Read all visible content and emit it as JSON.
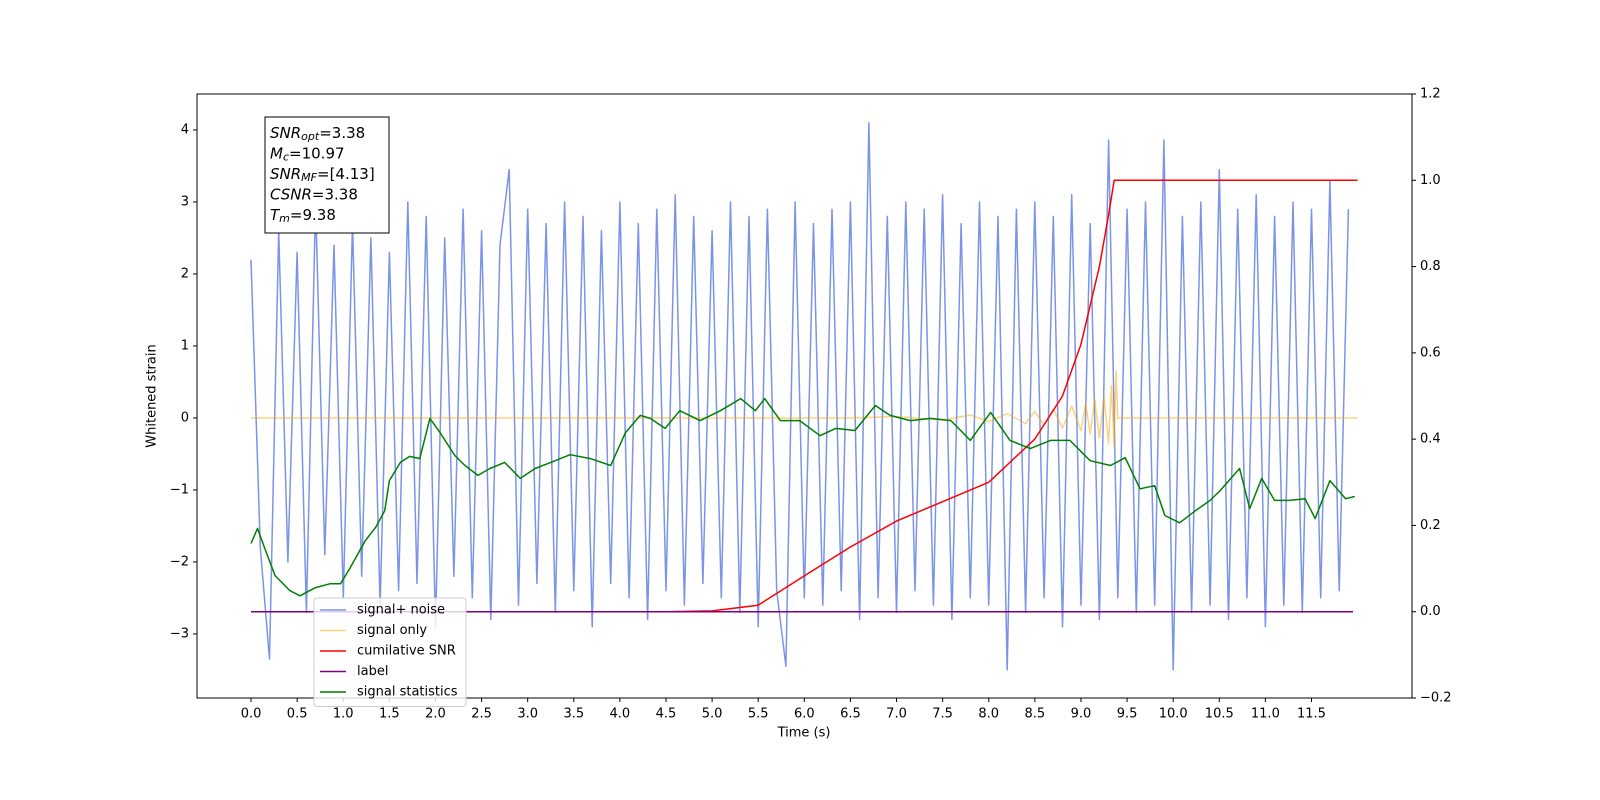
{
  "chart_data": {
    "type": "line",
    "xlabel": "Time (s)",
    "ylabel": "Whitened strain",
    "xlim": [
      -0.586,
      12.59
    ],
    "ylim": [
      -3.89,
      4.5
    ],
    "y2lim": [
      -0.2,
      1.2
    ],
    "xticks": [
      {
        "value": 0,
        "label": "0.0"
      },
      0.5,
      {
        "value": 1,
        "label": "1.0"
      },
      1.5,
      {
        "value": 2,
        "label": "2.0"
      },
      2.5,
      {
        "value": 3,
        "label": "3.0"
      },
      3.5,
      {
        "value": 4,
        "label": "4.0"
      },
      4.5,
      {
        "value": 5,
        "label": "5.0"
      },
      5.5,
      {
        "value": 6,
        "label": "6.0"
      },
      6.5,
      {
        "value": 7,
        "label": "7.0"
      },
      7.5,
      {
        "value": 8,
        "label": "8.0"
      },
      8.5,
      {
        "value": 9,
        "label": "9.0"
      },
      9.5,
      {
        "value": 10,
        "label": "10.0"
      },
      10.5,
      {
        "value": 11,
        "label": "11.0"
      },
      11.5
    ],
    "yticks": [
      {
        "value": -3,
        "label": "−3"
      },
      {
        "value": -2,
        "label": "−2"
      },
      {
        "value": -1,
        "label": "−1"
      },
      0,
      1,
      2,
      3,
      4
    ],
    "y2ticks": [
      {
        "value": -0.2,
        "label": "−0.2"
      },
      {
        "value": 0,
        "label": "0.0"
      },
      0.2,
      0.4,
      0.6,
      0.8,
      {
        "value": 1,
        "label": "1.0"
      },
      1.2
    ],
    "legend": "lower left",
    "series": [
      {
        "name": "signal+ noise",
        "color": "#6d88e6",
        "opacity": 0.9,
        "x": [
          0,
          0.1,
          0.2,
          0.3,
          0.4,
          0.5,
          0.6,
          0.7,
          0.8,
          0.9,
          1,
          1.1,
          1.2,
          1.3,
          1.4,
          1.5,
          1.6,
          1.7,
          1.8,
          1.9,
          2,
          2.1,
          2.2,
          2.3,
          2.4,
          2.5,
          2.6,
          2.7,
          2.8,
          2.9,
          3,
          3.1,
          3.2,
          3.3,
          3.4,
          3.5,
          3.6,
          3.7,
          3.8,
          3.9,
          4,
          4.1,
          4.2,
          4.3,
          4.4,
          4.5,
          4.6,
          4.7,
          4.8,
          4.9,
          5,
          5.1,
          5.2,
          5.3,
          5.4,
          5.5,
          5.6,
          5.7,
          5.8,
          5.9,
          6,
          6.1,
          6.2,
          6.3,
          6.4,
          6.5,
          6.6,
          6.7,
          6.8,
          6.9,
          7,
          7.1,
          7.2,
          7.3,
          7.4,
          7.5,
          7.6,
          7.7,
          7.8,
          7.9,
          8,
          8.1,
          8.2,
          8.3,
          8.4,
          8.5,
          8.6,
          8.7,
          8.8,
          8.9,
          9,
          9.1,
          9.2,
          9.3,
          9.4,
          9.5,
          9.6,
          9.7,
          9.8,
          9.9,
          10,
          10.1,
          10.2,
          10.3,
          10.4,
          10.5,
          10.6,
          10.7,
          10.8,
          10.9,
          11,
          11.1,
          11.2,
          11.3,
          11.4,
          11.5,
          11.6,
          11.7,
          11.8,
          11.9
        ],
        "values": [
          2.2,
          -1.8,
          -3.35,
          2.6,
          -2.0,
          2.3,
          -2.7,
          3.0,
          -1.9,
          2.4,
          -2.5,
          2.7,
          -2.2,
          2.5,
          -2.6,
          2.3,
          -2.4,
          3.0,
          -2.3,
          2.8,
          -2.9,
          2.5,
          -2.2,
          2.9,
          -2.5,
          2.6,
          -2.8,
          2.4,
          3.45,
          -2.6,
          2.9,
          -2.3,
          2.7,
          -2.7,
          3.0,
          -2.4,
          2.8,
          -2.9,
          2.6,
          -2.3,
          3.0,
          -2.5,
          2.7,
          -2.8,
          2.9,
          -2.4,
          3.1,
          -2.6,
          2.8,
          -2.3,
          2.6,
          -2.5,
          3.0,
          -2.7,
          2.8,
          -2.9,
          2.9,
          -2.4,
          -3.45,
          3.0,
          -2.5,
          2.7,
          -2.6,
          2.9,
          -2.4,
          3.0,
          -2.8,
          4.1,
          -2.5,
          2.8,
          -2.7,
          3.0,
          -2.4,
          2.9,
          -2.6,
          3.1,
          -2.8,
          2.7,
          -2.5,
          3.0,
          -2.6,
          2.8,
          -3.5,
          2.9,
          -2.7,
          3.0,
          -2.5,
          2.8,
          -2.9,
          3.1,
          -2.6,
          2.7,
          -2.8,
          3.86,
          -2.5,
          2.9,
          -2.7,
          3.0,
          -2.6,
          3.86,
          -3.5,
          2.8,
          -2.7,
          3.0,
          -2.6,
          3.45,
          -2.8,
          2.9,
          -2.5,
          3.1,
          -2.9,
          2.8,
          -2.6,
          3.0,
          -2.7,
          2.9,
          -2.5,
          3.3,
          -2.4,
          2.9
        ]
      },
      {
        "name": "signal only",
        "color": "#ffa500",
        "opacity": 0.5,
        "x": [
          0,
          6.5,
          7.0,
          7.5,
          7.8,
          8.0,
          8.2,
          8.4,
          8.5,
          8.6,
          8.7,
          8.8,
          8.9,
          9.0,
          9.05,
          9.1,
          9.15,
          9.2,
          9.25,
          9.3,
          9.33,
          9.36,
          9.38,
          9.4,
          12
        ],
        "values": [
          0,
          0,
          0.02,
          -0.03,
          0.04,
          -0.05,
          0.06,
          -0.08,
          0.09,
          -0.1,
          0.12,
          -0.14,
          0.16,
          -0.18,
          0.2,
          -0.22,
          0.25,
          -0.28,
          0.3,
          -0.35,
          0.45,
          -0.4,
          0.65,
          0,
          0
        ]
      },
      {
        "name": "cumilative SNR",
        "color": "#ff0000",
        "axis": "y2",
        "x": [
          0,
          4.5,
          5.0,
          5.5,
          6.0,
          6.5,
          7.0,
          7.5,
          8.0,
          8.5,
          8.8,
          9.0,
          9.2,
          9.3,
          9.36,
          12
        ],
        "values": [
          0,
          0,
          0.002,
          0.015,
          0.083,
          0.15,
          0.21,
          0.255,
          0.3,
          0.4,
          0.5,
          0.62,
          0.8,
          0.92,
          1,
          1
        ]
      },
      {
        "name": "label",
        "color": "#800080",
        "axis": "y2",
        "x": [
          0,
          11.95
        ],
        "values": [
          0,
          0
        ]
      },
      {
        "name": "signal statistics",
        "color": "#008000",
        "axis": "y2",
        "x": [
          0,
          0.07,
          0.15,
          0.26,
          0.42,
          0.53,
          0.7,
          0.86,
          0.97,
          1.07,
          1.24,
          1.35,
          1.45,
          1.5,
          1.62,
          1.72,
          1.83,
          1.94,
          2.05,
          2.21,
          2.32,
          2.46,
          2.59,
          2.75,
          2.92,
          3.08,
          3.25,
          3.46,
          3.68,
          3.9,
          4.06,
          4.22,
          4.33,
          4.49,
          4.65,
          4.87,
          5.09,
          5.31,
          5.47,
          5.57,
          5.74,
          5.95,
          6.17,
          6.34,
          6.55,
          6.77,
          6.93,
          7.15,
          7.37,
          7.59,
          7.8,
          8.02,
          8.23,
          8.45,
          8.67,
          8.88,
          9.1,
          9.32,
          9.48,
          9.64,
          9.8,
          9.91,
          10.07,
          10.24,
          10.4,
          10.51,
          10.72,
          10.83,
          10.96,
          11.1,
          11.26,
          11.43,
          11.54,
          11.7,
          11.87,
          11.97
        ],
        "values": [
          0.158,
          0.193,
          0.146,
          0.084,
          0.049,
          0.037,
          0.056,
          0.065,
          0.065,
          0.1,
          0.165,
          0.195,
          0.234,
          0.304,
          0.346,
          0.36,
          0.355,
          0.448,
          0.415,
          0.362,
          0.339,
          0.316,
          0.332,
          0.346,
          0.309,
          0.332,
          0.346,
          0.364,
          0.355,
          0.339,
          0.415,
          0.455,
          0.448,
          0.425,
          0.466,
          0.443,
          0.466,
          0.494,
          0.466,
          0.494,
          0.443,
          0.443,
          0.408,
          0.425,
          0.42,
          0.478,
          0.455,
          0.443,
          0.448,
          0.443,
          0.397,
          0.462,
          0.397,
          0.378,
          0.397,
          0.397,
          0.35,
          0.339,
          0.357,
          0.285,
          0.292,
          0.223,
          0.206,
          0.234,
          0.258,
          0.281,
          0.332,
          0.239,
          0.309,
          0.258,
          0.258,
          0.262,
          0.216,
          0.304,
          0.262,
          0.267
        ]
      }
    ],
    "annotations": [
      {
        "base": "SNR",
        "sub": "opt",
        "text": "=3.38"
      },
      {
        "base": "M",
        "sub": "c",
        "text": "=10.97"
      },
      {
        "base": "SNR",
        "sub": "MF",
        "text": "=[4.13]"
      },
      {
        "base": "CSNR",
        "text": "=3.38"
      },
      {
        "base": "T",
        "sub": "m",
        "text": "=9.38"
      }
    ]
  }
}
